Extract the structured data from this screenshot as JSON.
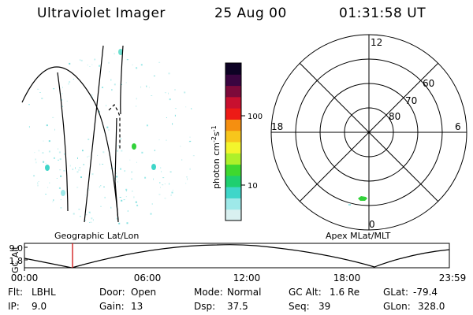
{
  "header": {
    "instrument": "Ultraviolet Imager",
    "date": "25 Aug 00",
    "time": "01:31:58 UT"
  },
  "left_panel": {
    "label": "Geographic Lat/Lon"
  },
  "right_panel": {
    "label": "Apex MLat/MLT",
    "mlt_labels": [
      "12",
      "18",
      "6",
      "0"
    ],
    "lat_labels": [
      "60",
      "70",
      "80"
    ]
  },
  "colorbar": {
    "unit_label": "photon cm",
    "unit_exp1": "-2",
    "unit_s": "s",
    "unit_exp2": "-1",
    "tick_labels": [
      "100",
      "10"
    ],
    "colors": [
      "#d9f0f0",
      "#9ee9e9",
      "#3fd6c9",
      "#1fcf6f",
      "#3fd82f",
      "#aef02a",
      "#f3f52c",
      "#f7c61c",
      "#f58f10",
      "#ed1b16",
      "#c8102f",
      "#7d0a3a",
      "#3a0540",
      "#0d0224"
    ]
  },
  "altitude_plot": {
    "axis_label": "GC Alt",
    "y_ticks": [
      "9.0",
      "1.8"
    ],
    "x_ticks": [
      "00:00",
      "06:00",
      "12:00",
      "18:00",
      "23:59"
    ]
  },
  "info": {
    "flt_label": "Flt:",
    "flt_value": "LBHL",
    "ip_label": "IP:",
    "ip_value": "9.0",
    "door_label": "Door:",
    "door_value": "Open",
    "gain_label": "Gain:",
    "gain_value": "13",
    "mode_label": "Mode:",
    "mode_value": "Normal",
    "dsp_label": "Dsp:",
    "dsp_value": "37.5",
    "gcalt_label": "GC Alt:",
    "gcalt_value": "1.6 Re",
    "seq_label": "Seq:",
    "seq_value": "39",
    "glat_label": "GLat:",
    "glat_value": "-79.4",
    "glon_label": "GLon:",
    "glon_value": "328.0"
  }
}
